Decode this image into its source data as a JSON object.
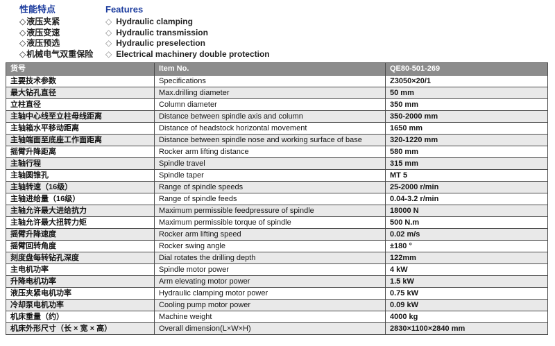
{
  "colors": {
    "accent_blue": "#1c3c9e",
    "header_bg": "#8c8c8c",
    "header_text": "#ffffff",
    "row_stripe": "#e9e9e9",
    "border": "#4a4a4a",
    "text": "#141414"
  },
  "features": {
    "title_zh": "性能特点",
    "title_en": "Features",
    "bullet_icon": "diamond-outline-icon",
    "bullet_glyph": "◇",
    "items": [
      {
        "zh": "液压夹紧",
        "en": "Hydraulic clamping"
      },
      {
        "zh": "液压变速",
        "en": "Hydraulic transmission"
      },
      {
        "zh": "液压预选",
        "en": "Hydraulic preselection"
      },
      {
        "zh": "机械电气双重保险",
        "en": "Electrical machinery double protection"
      }
    ]
  },
  "table": {
    "header": {
      "item_zh": "货号",
      "item_en": "Item No.",
      "value": "QE80-501-269"
    },
    "rows": [
      {
        "zh": "主要技术参数",
        "en": "Specifications",
        "value": "Z3050×20/1"
      },
      {
        "zh": "最大钻孔直径",
        "en": "Max.drilling diameter",
        "value": "50 mm"
      },
      {
        "zh": "立柱直径",
        "en": "Column diameter",
        "value": "350 mm"
      },
      {
        "zh": "主轴中心线至立柱母线距离",
        "en": "Distance between spindle axis and column",
        "value": "350-2000 mm"
      },
      {
        "zh": "主轴箱水平移动距离",
        "en": "Distance of headstock horizontal movement",
        "value": "1650 mm"
      },
      {
        "zh": "主轴端面至底座工作面距离",
        "en": "Distance between spindle nose and working surface of base",
        "value": "320-1220 mm"
      },
      {
        "zh": "摇臂升降距离",
        "en": "Rocker arm lifting distance",
        "value": "580 mm"
      },
      {
        "zh": "主轴行程",
        "en": "Spindle travel",
        "value": "315 mm"
      },
      {
        "zh": "主轴圆锥孔",
        "en": "Spindle taper",
        "value": "MT 5"
      },
      {
        "zh": "主轴转速（16级）",
        "en": "Range of spindle speeds",
        "value": "25-2000 r/min"
      },
      {
        "zh": "主轴进给量（16级）",
        "en": "Range of spindle feeds",
        "value": "0.04-3.2 r/min"
      },
      {
        "zh": "主轴允许最大进给抗力",
        "en": "Maximum permissible feedpressure of spindle",
        "value": "18000 N"
      },
      {
        "zh": "主轴允许最大扭转力矩",
        "en": "Maximum permissible torque of spindle",
        "value": "500 N.m"
      },
      {
        "zh": "摇臂升降速度",
        "en": "Rocker arm lifting speed",
        "value": "0.02 m/s"
      },
      {
        "zh": "摇臂回转角度",
        "en": "Rocker swing angle",
        "value": "±180 °"
      },
      {
        "zh": "刻度盘每转钻孔深度",
        "en": "Dial rotates the drilling depth",
        "value": "122mm"
      },
      {
        "zh": "主电机功率",
        "en": "Spindle motor power",
        "value": "4 kW"
      },
      {
        "zh": "升降电机功率",
        "en": "Arm elevating motor power",
        "value": "1.5 kW"
      },
      {
        "zh": "液压夹紧电机功率",
        "en": "Hydraulic clamping motor power",
        "value": "0.75 kW"
      },
      {
        "zh": "冷却泵电机功率",
        "en": "Cooling pump motor power",
        "value": "0.09 kW"
      },
      {
        "zh": "机床重量（约）",
        "en": "Machine weight",
        "value": "4000 kg"
      },
      {
        "zh": "机床外形尺寸（长 × 宽 × 高）",
        "en": "Overall dimension(L×W×H)",
        "value": "2830×1100×2840 mm"
      }
    ]
  }
}
